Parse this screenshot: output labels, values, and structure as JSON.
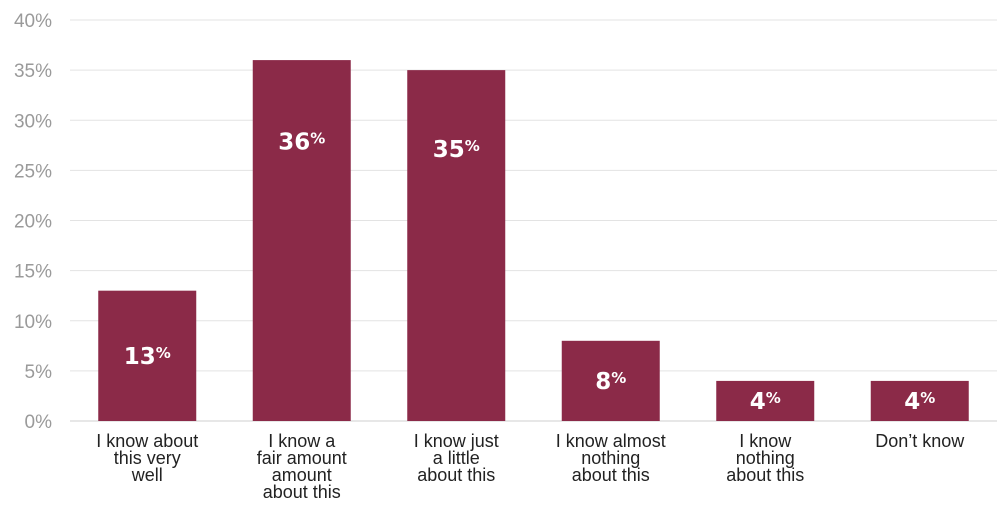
{
  "chart_data": {
    "type": "bar",
    "categories": [
      [
        "I know about",
        "this very",
        "well"
      ],
      [
        "I know a",
        "fair amount",
        "amount",
        "about this"
      ],
      [
        "I know just",
        "a little",
        "about this"
      ],
      [
        "I know almost",
        "nothing",
        "about this"
      ],
      [
        "I know",
        "nothing",
        "about this"
      ],
      [
        "Don’t know"
      ]
    ],
    "values": [
      13,
      36,
      35,
      8,
      4,
      4
    ],
    "data_labels": [
      "13",
      "36",
      "35",
      "8",
      "4",
      "4"
    ],
    "data_label_suffix": "%",
    "ylim": [
      0,
      40
    ],
    "yticks": [
      "0%",
      "5%",
      "10%",
      "15%",
      "20%",
      "25%",
      "30%",
      "35%",
      "40%"
    ],
    "grid": true,
    "bar_color": "#8b2a48",
    "grid_color": "#e3e3e3"
  }
}
